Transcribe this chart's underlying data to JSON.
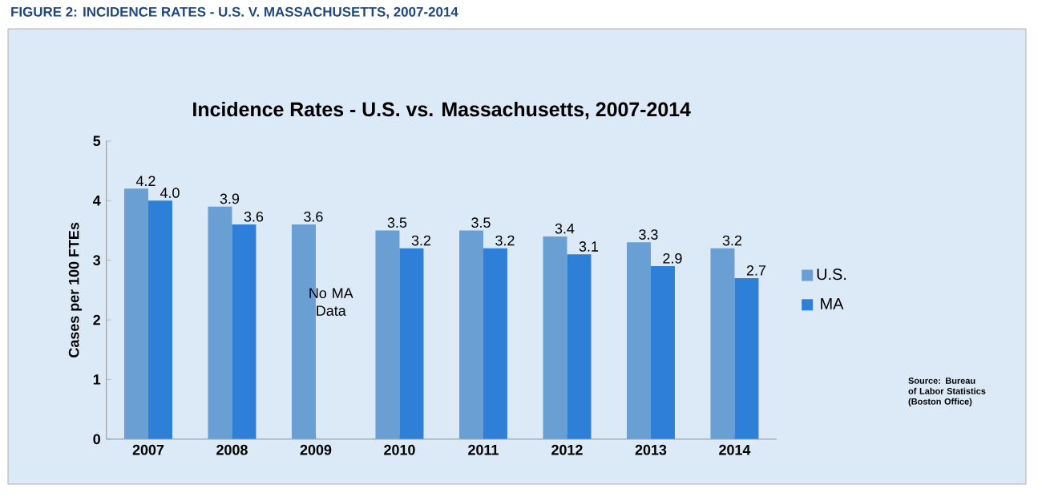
{
  "chart_data": {
    "type": "bar",
    "title": "Incidence Rates - U.S. vs. Massachusetts, 2007-2014",
    "ylabel": "Cases per 100 FTEs",
    "categories": [
      "2007",
      "2008",
      "2009",
      "2010",
      "2011",
      "2012",
      "2013",
      "2014"
    ],
    "series": [
      {
        "name": "U.S.",
        "color": "#6a9fd4",
        "values": [
          4.2,
          3.9,
          3.6,
          3.5,
          3.5,
          3.4,
          3.3,
          3.2
        ],
        "value_labels": [
          "4.2",
          "3.9",
          "3.6",
          "3.5",
          "3.5",
          "3.4",
          "3.3",
          "3.2"
        ]
      },
      {
        "name": "MA",
        "color": "#2e7fd8",
        "values": [
          4.0,
          3.6,
          null,
          3.2,
          3.2,
          3.1,
          2.9,
          2.7
        ],
        "value_labels": [
          "4.0",
          "3.6",
          null,
          "3.2",
          "3.2",
          "3.1",
          "2.9",
          "2.7"
        ]
      }
    ],
    "ylim": [
      0,
      5
    ],
    "yticks": [
      0,
      1,
      2,
      3,
      4,
      5
    ],
    "grid": false,
    "legend": "right",
    "annotations": [
      "FIGURE 2: INCIDENCE RATES - U.S. V. MASSACHUSETTS, 2007-2014",
      {
        "text": "No MA Data",
        "x": "2009",
        "y": 2.3
      },
      "Source: Bureau of Labor Statistics (Boston Office)"
    ]
  }
}
